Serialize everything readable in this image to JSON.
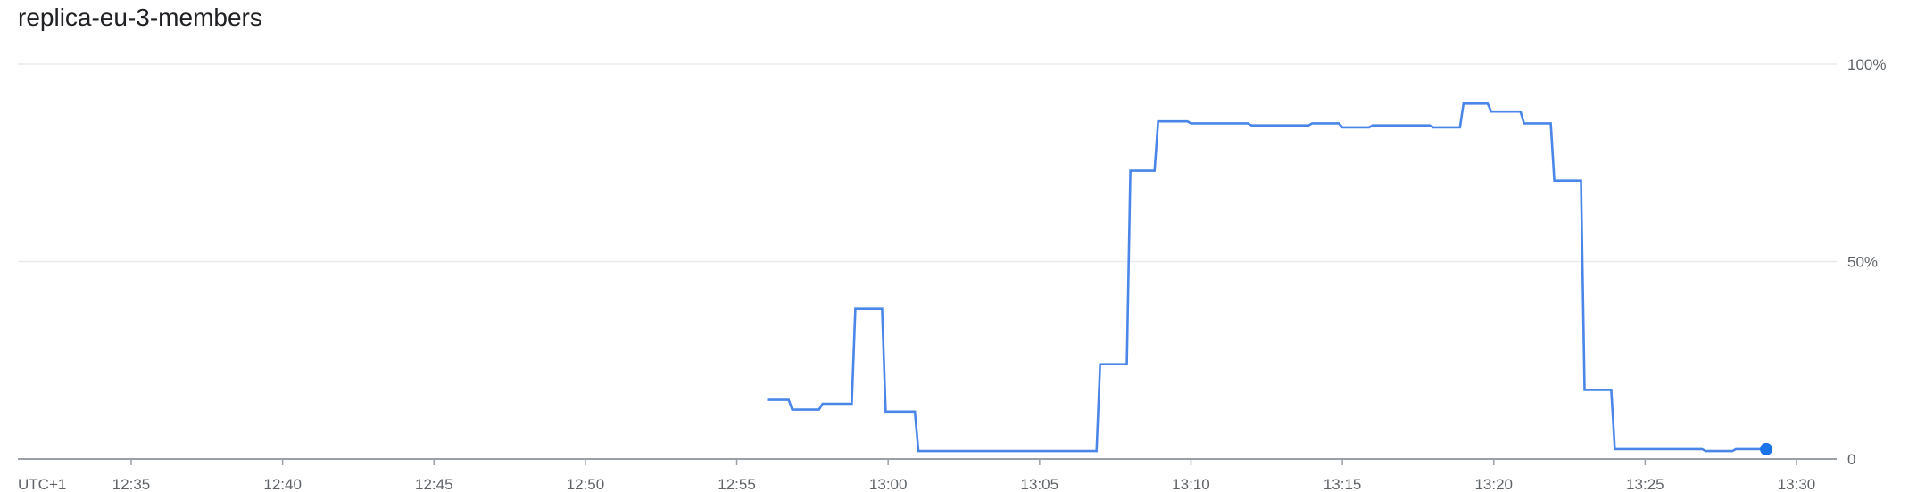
{
  "chart_data": {
    "type": "line",
    "title": "replica-eu-3-members",
    "timezone_label": "UTC+1",
    "xlabel": "",
    "ylabel": "",
    "grid": true,
    "y_axis_side": "right",
    "ylim": [
      0,
      100
    ],
    "y_ticks": [
      {
        "value": 0,
        "label": "0"
      },
      {
        "value": 50,
        "label": "50%"
      },
      {
        "value": 100,
        "label": "100%"
      }
    ],
    "x_ticks": [
      "12:35",
      "12:40",
      "12:45",
      "12:50",
      "12:55",
      "13:00",
      "13:05",
      "13:10",
      "13:15",
      "13:20",
      "13:25",
      "13:30"
    ],
    "series": [
      {
        "color": "#4a86e8",
        "endpoint_color": "#1a73e8",
        "step": true,
        "points": [
          {
            "x": "12:56:00",
            "y": 15
          },
          {
            "x": "12:56:50",
            "y": 12.5
          },
          {
            "x": "12:57:50",
            "y": 14
          },
          {
            "x": "12:58:55",
            "y": 38
          },
          {
            "x": "12:59:55",
            "y": 12
          },
          {
            "x": "13:01:00",
            "y": 2
          },
          {
            "x": "13:07:00",
            "y": 24
          },
          {
            "x": "13:08:00",
            "y": 73
          },
          {
            "x": "13:08:55",
            "y": 85.5
          },
          {
            "x": "13:10:00",
            "y": 85
          },
          {
            "x": "13:12:00",
            "y": 84.5
          },
          {
            "x": "13:14:00",
            "y": 85
          },
          {
            "x": "13:15:00",
            "y": 84
          },
          {
            "x": "13:16:00",
            "y": 84.5
          },
          {
            "x": "13:18:00",
            "y": 84
          },
          {
            "x": "13:19:00",
            "y": 90
          },
          {
            "x": "13:19:55",
            "y": 88
          },
          {
            "x": "13:21:00",
            "y": 85
          },
          {
            "x": "13:22:00",
            "y": 70.5
          },
          {
            "x": "13:23:00",
            "y": 17.5
          },
          {
            "x": "13:24:00",
            "y": 2.5
          },
          {
            "x": "13:27:00",
            "y": 2
          },
          {
            "x": "13:28:00",
            "y": 2.5
          },
          {
            "x": "13:29:00",
            "y": 2.5
          }
        ]
      }
    ]
  }
}
